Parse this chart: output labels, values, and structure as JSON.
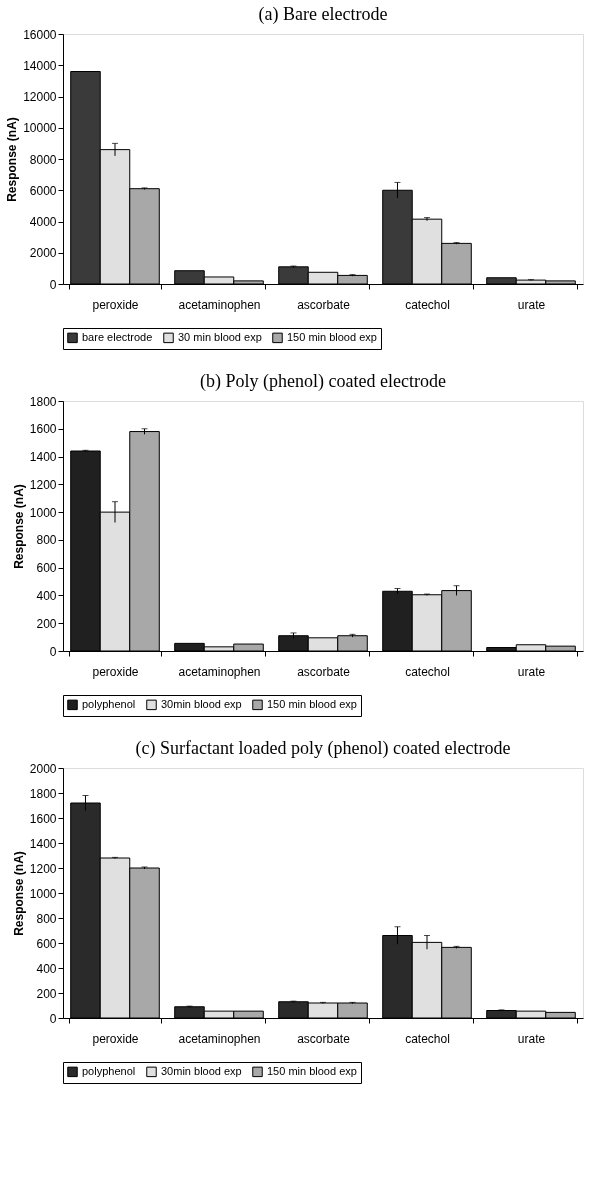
{
  "chart_data": [
    {
      "type": "bar",
      "title": "(a) Bare electrode",
      "ylabel": "Response (nA)",
      "categories": [
        "peroxide",
        "acetaminophen",
        "ascorbate",
        "catechol",
        "urate"
      ],
      "ylim": [
        0,
        16000
      ],
      "yticks": [
        0,
        2000,
        4000,
        6000,
        8000,
        10000,
        12000,
        14000,
        16000
      ],
      "grid": false,
      "legend": "bottom",
      "series": [
        {
          "name": "bare electrode",
          "color": "#3a3a3a",
          "values": [
            13600,
            850,
            1100,
            6000,
            400
          ],
          "errors": [
            null,
            null,
            50,
            500,
            null
          ]
        },
        {
          "name": "30 min blood exp",
          "color": "#e0e0e0",
          "values": [
            8600,
            450,
            750,
            4150,
            250
          ],
          "errors": [
            400,
            null,
            null,
            100,
            30
          ]
        },
        {
          "name": "150 min blood exp",
          "color": "#a8a8a8",
          "values": [
            6100,
            200,
            550,
            2600,
            200
          ],
          "errors": [
            50,
            null,
            50,
            50,
            null
          ]
        }
      ]
    },
    {
      "type": "bar",
      "title": "(b) Poly (phenol) coated  electrode",
      "ylabel": "Response (nA)",
      "categories": [
        "peroxide",
        "acetaminophen",
        "ascorbate",
        "catechol",
        "urate"
      ],
      "ylim": [
        0,
        1800
      ],
      "yticks": [
        0,
        200,
        400,
        600,
        800,
        1000,
        1200,
        1400,
        1600,
        1800
      ],
      "grid": false,
      "legend": "bottom",
      "series": [
        {
          "name": "polyphenol",
          "color": "#202020",
          "values": [
            1440,
            55,
            110,
            430,
            25
          ],
          "errors": [
            5,
            null,
            20,
            20,
            null
          ]
        },
        {
          "name": "30min blood exp",
          "color": "#e0e0e0",
          "values": [
            1000,
            30,
            95,
            405,
            45
          ],
          "errors": [
            75,
            null,
            null,
            5,
            null
          ]
        },
        {
          "name": "150 min blood exp",
          "color": "#a8a8a8",
          "values": [
            1580,
            50,
            110,
            435,
            35
          ],
          "errors": [
            20,
            null,
            10,
            35,
            null
          ]
        }
      ]
    },
    {
      "type": "bar",
      "title": "(c) Surfactant loaded poly (phenol) coated electrode",
      "ylabel": "Response (nA)",
      "categories": [
        "peroxide",
        "acetaminophen",
        "ascorbate",
        "catechol",
        "urate"
      ],
      "ylim": [
        0,
        2000
      ],
      "yticks": [
        0,
        200,
        400,
        600,
        800,
        1000,
        1200,
        1400,
        1600,
        1800,
        2000
      ],
      "grid": false,
      "legend": "bottom",
      "series": [
        {
          "name": "polyphenol",
          "color": "#2a2a2a",
          "values": [
            1720,
            90,
            130,
            660,
            60
          ],
          "errors": [
            60,
            5,
            5,
            70,
            5
          ]
        },
        {
          "name": "30min blood exp",
          "color": "#e0e0e0",
          "values": [
            1280,
            55,
            120,
            605,
            55
          ],
          "errors": [
            5,
            null,
            5,
            55,
            null
          ]
        },
        {
          "name": "150 min blood exp",
          "color": "#a8a8a8",
          "values": [
            1200,
            55,
            120,
            565,
            45
          ],
          "errors": [
            8,
            null,
            5,
            8,
            null
          ]
        }
      ]
    }
  ]
}
